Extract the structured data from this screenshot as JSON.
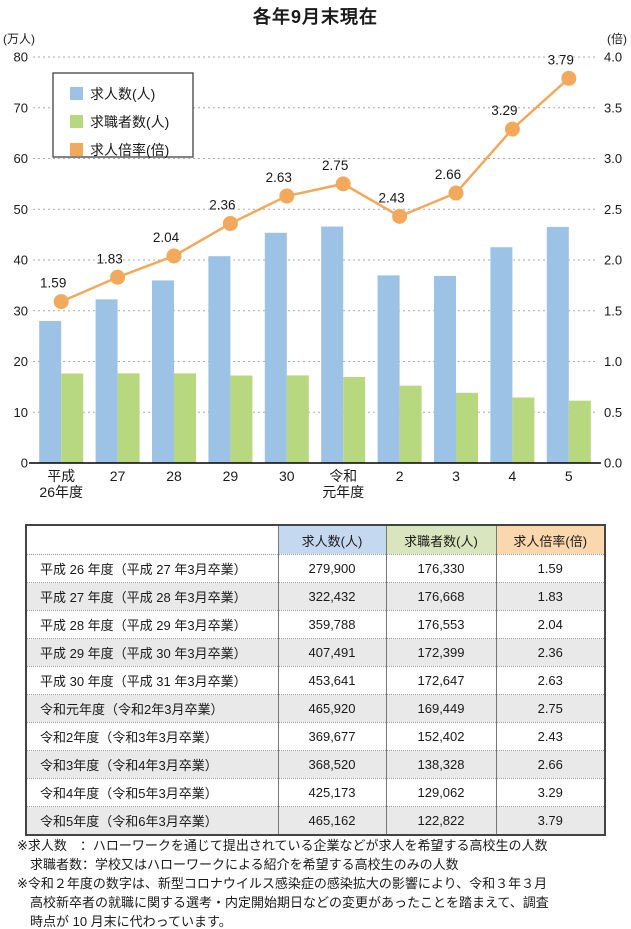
{
  "chart_data": {
    "type": "bar",
    "subtype": "combo-bar-line",
    "title": "各年9月末現在",
    "categories": [
      [
        "平成",
        "26年度"
      ],
      [
        "27"
      ],
      [
        "28"
      ],
      [
        "29"
      ],
      [
        "30"
      ],
      [
        "令和",
        "元年度"
      ],
      [
        "2"
      ],
      [
        "3"
      ],
      [
        "4"
      ],
      [
        "5"
      ]
    ],
    "series": [
      {
        "name": "求人数(人)",
        "type": "bar",
        "axis": "left",
        "color": "#9cc2e6",
        "values": [
          279900,
          322432,
          359788,
          407491,
          453641,
          465920,
          369677,
          368520,
          425173,
          465162
        ],
        "value_divisor": 10000
      },
      {
        "name": "求職者数(人)",
        "type": "bar",
        "axis": "left",
        "color": "#b8d880",
        "values": [
          176330,
          176668,
          176553,
          172399,
          172647,
          169449,
          152402,
          138328,
          129062,
          122822
        ],
        "value_divisor": 10000
      },
      {
        "name": "求人倍率(倍)",
        "type": "line",
        "axis": "right",
        "color": "#f2a95c",
        "values": [
          1.59,
          1.83,
          2.04,
          2.36,
          2.63,
          2.75,
          2.43,
          2.66,
          3.29,
          3.79
        ],
        "point_labels": [
          "1.59",
          "1.83",
          "2.04",
          "2.36",
          "2.63",
          "2.75",
          "2.43",
          "2.66",
          "3.29",
          "3.79"
        ]
      }
    ],
    "left_axis": {
      "unit_label": "(万人)",
      "min": 0,
      "max": 80,
      "step": 10,
      "tick_labels": [
        "0",
        "10",
        "20",
        "30",
        "40",
        "50",
        "60",
        "70",
        "80"
      ]
    },
    "right_axis": {
      "unit_label": "(倍)",
      "min": 0,
      "max": 4,
      "step": 0.5,
      "tick_labels": [
        "0.0",
        "0.5",
        "1.0",
        "1.5",
        "2.0",
        "2.5",
        "3.0",
        "3.5",
        "4.0"
      ]
    },
    "grid": "dashed-horizontal",
    "legend": {
      "position": "top-left-inside",
      "entries": [
        "求人数(人)",
        "求職者数(人)",
        "求人倍率(倍)"
      ]
    }
  },
  "table": {
    "headers": [
      "",
      "求人数(人)",
      "求職者数(人)",
      "求人倍率(倍)"
    ],
    "header_colors": [
      "#ffffff",
      "#c4d8f0",
      "#d9e6bd",
      "#fbd7ad"
    ],
    "rows": [
      [
        "平成 26 年度（平成 27 年3月卒業）",
        "279,900",
        "176,330",
        "1.59"
      ],
      [
        "平成 27 年度（平成 28 年3月卒業）",
        "322,432",
        "176,668",
        "1.83"
      ],
      [
        "平成 28 年度（平成 29 年3月卒業）",
        "359,788",
        "176,553",
        "2.04"
      ],
      [
        "平成 29 年度（平成 30 年3月卒業）",
        "407,491",
        "172,399",
        "2.36"
      ],
      [
        "平成 30 年度（平成 31 年3月卒業）",
        "453,641",
        "172,647",
        "2.63"
      ],
      [
        "令和元年度（令和2年3月卒業）",
        "465,920",
        "169,449",
        "2.75"
      ],
      [
        "令和2年度（令和3年3月卒業）",
        "369,677",
        "152,402",
        "2.43"
      ],
      [
        "令和3年度（令和4年3月卒業）",
        "368,520",
        "138,328",
        "2.66"
      ],
      [
        "令和4年度（令和5年3月卒業）",
        "425,173",
        "129,062",
        "3.29"
      ],
      [
        "令和5年度（令和6年3月卒業）",
        "465,162",
        "122,822",
        "3.79"
      ]
    ]
  },
  "footnotes": [
    {
      "lines": [
        "※求人数　：ハローワークを通じて提出されている企業などが求人を希望する高校生の人数",
        "　求職者数：学校又はハローワークによる紹介を希望する高校生のみの人数"
      ]
    },
    {
      "lines": [
        "※令和２年度の数字は、新型コロナウイルス感染症の感染拡大の影響により、令和３年３月",
        "　高校新卒者の就職に関する選考・内定開始期日などの変更があったことを踏まえて、調査",
        "　時点が 10 月末に代わっています。"
      ]
    }
  ],
  "colors": {
    "bar_openings": "#9cc2e6",
    "bar_seekers": "#b8d880",
    "line_ratio": "#f2a95c",
    "grid": "#aaaaaa",
    "axis": "#222222",
    "row_stripe": "#e9e9e9"
  }
}
